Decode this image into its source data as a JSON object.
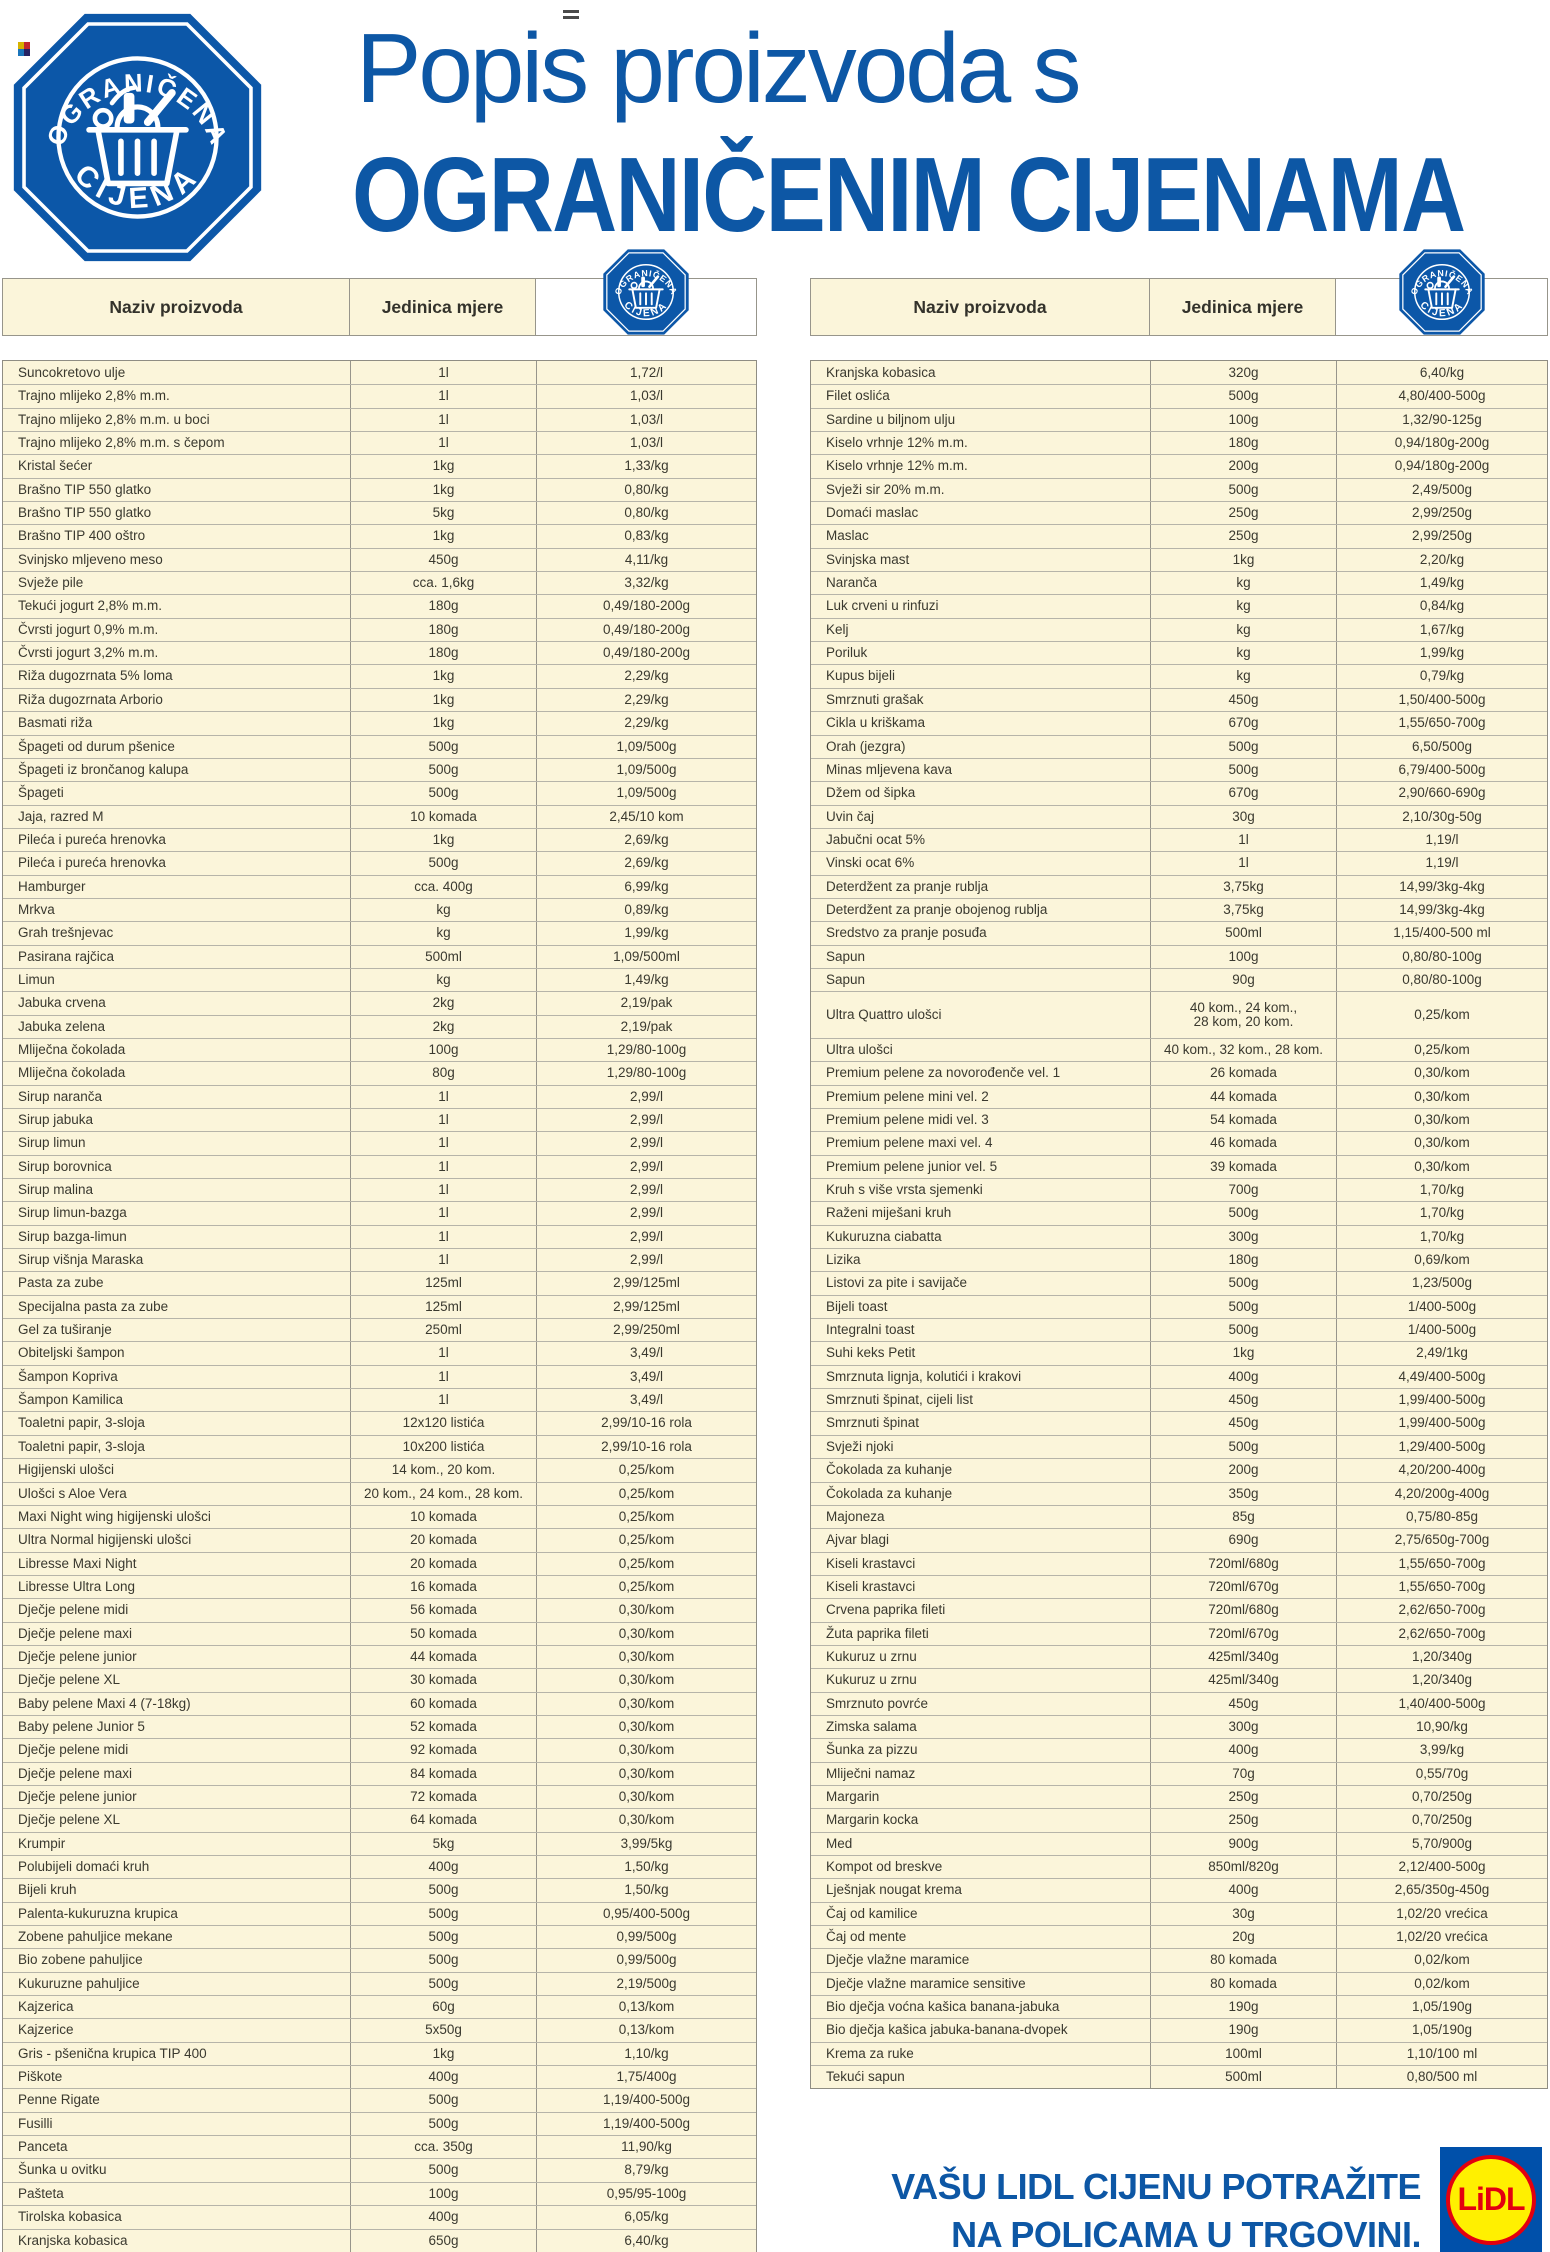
{
  "badge": {
    "top_text": "OGRANIČENA",
    "bottom_text": "CIJENA"
  },
  "title": {
    "line1": "Popis proizvoda s",
    "line2": "OGRANIČENIM CIJENAMA"
  },
  "table_header": {
    "product": "Naziv proizvoda",
    "unit": "Jedinica mjere"
  },
  "colors": {
    "brand_blue": "#0d57a5",
    "badge_blue": "#0c57a8",
    "row_cream": "#fbf5da",
    "border_gray": "#97958b",
    "text_dark": "#3a392f",
    "lidl_square_blue": "#0050aa",
    "lidl_yellow": "#fff000",
    "lidl_red": "#e3000f"
  },
  "tables": {
    "left": {
      "rows": [
        [
          "Suncokretovo ulje",
          "1l",
          "1,72/l"
        ],
        [
          "Trajno mlijeko 2,8% m.m.",
          "1l",
          "1,03/l"
        ],
        [
          "Trajno mlijeko 2,8% m.m. u boci",
          "1l",
          "1,03/l"
        ],
        [
          "Trajno mlijeko 2,8% m.m. s čepom",
          "1l",
          "1,03/l"
        ],
        [
          "Kristal šećer",
          "1kg",
          "1,33/kg"
        ],
        [
          "Brašno TIP 550 glatko",
          "1kg",
          "0,80/kg"
        ],
        [
          "Brašno TIP 550 glatko",
          "5kg",
          "0,80/kg"
        ],
        [
          "Brašno TIP 400 oštro",
          "1kg",
          "0,83/kg"
        ],
        [
          "Svinjsko mljeveno meso",
          "450g",
          "4,11/kg"
        ],
        [
          "Svježe pile",
          "cca. 1,6kg",
          "3,32/kg"
        ],
        [
          "Tekući jogurt 2,8% m.m.",
          "180g",
          "0,49/180-200g"
        ],
        [
          "Čvrsti jogurt 0,9% m.m.",
          "180g",
          "0,49/180-200g"
        ],
        [
          "Čvrsti jogurt 3,2% m.m.",
          "180g",
          "0,49/180-200g"
        ],
        [
          "Riža dugozrnata 5% loma",
          "1kg",
          "2,29/kg"
        ],
        [
          "Riža dugozrnata Arborio",
          "1kg",
          "2,29/kg"
        ],
        [
          "Basmati riža",
          "1kg",
          "2,29/kg"
        ],
        [
          "Špageti od durum pšenice",
          "500g",
          "1,09/500g"
        ],
        [
          "Špageti iz brončanog kalupa",
          "500g",
          "1,09/500g"
        ],
        [
          "Špageti",
          "500g",
          "1,09/500g"
        ],
        [
          "Jaja, razred M",
          "10 komada",
          "2,45/10 kom"
        ],
        [
          "Pileća i pureća hrenovka",
          "1kg",
          "2,69/kg"
        ],
        [
          "Pileća i pureća hrenovka",
          "500g",
          "2,69/kg"
        ],
        [
          "Hamburger",
          "cca. 400g",
          "6,99/kg"
        ],
        [
          "Mrkva",
          "kg",
          "0,89/kg"
        ],
        [
          "Grah trešnjevac",
          "kg",
          "1,99/kg"
        ],
        [
          "Pasirana rajčica",
          "500ml",
          "1,09/500ml"
        ],
        [
          "Limun",
          "kg",
          "1,49/kg"
        ],
        [
          "Jabuka crvena",
          "2kg",
          "2,19/pak"
        ],
        [
          "Jabuka zelena",
          "2kg",
          "2,19/pak"
        ],
        [
          "Mliječna čokolada",
          "100g",
          "1,29/80-100g"
        ],
        [
          "Mliječna čokolada",
          "80g",
          "1,29/80-100g"
        ],
        [
          "Sirup naranča",
          "1l",
          "2,99/l"
        ],
        [
          "Sirup jabuka",
          "1l",
          "2,99/l"
        ],
        [
          "Sirup limun",
          "1l",
          "2,99/l"
        ],
        [
          "Sirup borovnica",
          "1l",
          "2,99/l"
        ],
        [
          "Sirup malina",
          "1l",
          "2,99/l"
        ],
        [
          "Sirup limun-bazga",
          "1l",
          "2,99/l"
        ],
        [
          "Sirup bazga-limun",
          "1l",
          "2,99/l"
        ],
        [
          "Sirup višnja Maraska",
          "1l",
          "2,99/l"
        ],
        [
          "Pasta za zube",
          "125ml",
          "2,99/125ml"
        ],
        [
          "Specijalna pasta za zube",
          "125ml",
          "2,99/125ml"
        ],
        [
          "Gel za tuširanje",
          "250ml",
          "2,99/250ml"
        ],
        [
          "Obiteljski šampon",
          "1l",
          "3,49/l"
        ],
        [
          "Šampon Kopriva",
          "1l",
          "3,49/l"
        ],
        [
          "Šampon Kamilica",
          "1l",
          "3,49/l"
        ],
        [
          "Toaletni papir, 3-sloja",
          "12x120 listića",
          "2,99/10-16 rola"
        ],
        [
          "Toaletni papir, 3-sloja",
          "10x200 listića",
          "2,99/10-16 rola"
        ],
        [
          "Higijenski ulošci",
          "14 kom., 20 kom.",
          "0,25/kom"
        ],
        [
          "Ulošci s Aloe Vera",
          "20 kom., 24 kom., 28 kom.",
          "0,25/kom"
        ],
        [
          "Maxi Night wing higijenski ulošci",
          "10 komada",
          "0,25/kom"
        ],
        [
          "Ultra Normal higijenski ulošci",
          "20 komada",
          "0,25/kom"
        ],
        [
          "Libresse Maxi Night",
          "20 komada",
          "0,25/kom"
        ],
        [
          "Libresse Ultra Long",
          "16 komada",
          "0,25/kom"
        ],
        [
          "Dječje pelene midi",
          "56 komada",
          "0,30/kom"
        ],
        [
          "Dječje pelene maxi",
          "50 komada",
          "0,30/kom"
        ],
        [
          "Dječje pelene junior",
          "44 komada",
          "0,30/kom"
        ],
        [
          "Dječje pelene XL",
          "30 komada",
          "0,30/kom"
        ],
        [
          "Baby pelene Maxi 4 (7-18kg)",
          "60 komada",
          "0,30/kom"
        ],
        [
          "Baby pelene Junior 5",
          "52 komada",
          "0,30/kom"
        ],
        [
          "Dječje pelene midi",
          "92 komada",
          "0,30/kom"
        ],
        [
          "Dječje pelene maxi",
          "84 komada",
          "0,30/kom"
        ],
        [
          "Dječje pelene junior",
          "72 komada",
          "0,30/kom"
        ],
        [
          "Dječje pelene XL",
          "64 komada",
          "0,30/kom"
        ],
        [
          "Krumpir",
          "5kg",
          "3,99/5kg"
        ],
        [
          "Polubijeli domaći kruh",
          "400g",
          "1,50/kg"
        ],
        [
          "Bijeli kruh",
          "500g",
          "1,50/kg"
        ],
        [
          "Palenta-kukuruzna krupica",
          "500g",
          "0,95/400-500g"
        ],
        [
          "Zobene pahuljice mekane",
          "500g",
          "0,99/500g"
        ],
        [
          "Bio zobene pahuljice",
          "500g",
          "0,99/500g"
        ],
        [
          "Kukuruzne pahuljice",
          "500g",
          "2,19/500g"
        ],
        [
          "Kajzerica",
          "60g",
          "0,13/kom"
        ],
        [
          "Kajzerice",
          "5x50g",
          "0,13/kom"
        ],
        [
          "Gris - pšenična krupica TIP 400",
          "1kg",
          "1,10/kg"
        ],
        [
          "Piškote",
          "400g",
          "1,75/400g"
        ],
        [
          "Penne Rigate",
          "500g",
          "1,19/400-500g"
        ],
        [
          "Fusilli",
          "500g",
          "1,19/400-500g"
        ],
        [
          "Panceta",
          "cca. 350g",
          "11,90/kg"
        ],
        [
          "Šunka u ovitku",
          "500g",
          "8,79/kg"
        ],
        [
          "Pašteta",
          "100g",
          "0,95/95-100g"
        ],
        [
          "Tirolska kobasica",
          "400g",
          "6,05/kg"
        ],
        [
          "Kranjska kobasica",
          "650g",
          "6,40/kg"
        ]
      ]
    },
    "right": {
      "rows": [
        [
          "Kranjska kobasica",
          "320g",
          "6,40/kg"
        ],
        [
          "Filet oslića",
          "500g",
          "4,80/400-500g"
        ],
        [
          "Sardine u biljnom ulju",
          "100g",
          "1,32/90-125g"
        ],
        [
          "Kiselo vrhnje 12% m.m.",
          "180g",
          "0,94/180g-200g"
        ],
        [
          "Kiselo vrhnje 12% m.m.",
          "200g",
          "0,94/180g-200g"
        ],
        [
          "Svježi sir 20% m.m.",
          "500g",
          "2,49/500g"
        ],
        [
          "Domaći maslac",
          "250g",
          "2,99/250g"
        ],
        [
          "Maslac",
          "250g",
          "2,99/250g"
        ],
        [
          "Svinjska mast",
          "1kg",
          "2,20/kg"
        ],
        [
          "Naranča",
          "kg",
          "1,49/kg"
        ],
        [
          "Luk crveni u rinfuzi",
          "kg",
          "0,84/kg"
        ],
        [
          "Kelj",
          "kg",
          "1,67/kg"
        ],
        [
          "Poriluk",
          "kg",
          "1,99/kg"
        ],
        [
          "Kupus bijeli",
          "kg",
          "0,79/kg"
        ],
        [
          "Smrznuti grašak",
          "450g",
          "1,50/400-500g"
        ],
        [
          "Cikla u kriškama",
          "670g",
          "1,55/650-700g"
        ],
        [
          "Orah (jezgra)",
          "500g",
          "6,50/500g"
        ],
        [
          "Minas mljevena kava",
          "500g",
          "6,79/400-500g"
        ],
        [
          "Džem od šipka",
          "670g",
          "2,90/660-690g"
        ],
        [
          "Uvin čaj",
          "30g",
          "2,10/30g-50g"
        ],
        [
          "Jabučni ocat 5%",
          "1l",
          "1,19/l"
        ],
        [
          "Vinski ocat 6%",
          "1l",
          "1,19/l"
        ],
        [
          "Deterdžent za pranje rublja",
          "3,75kg",
          "14,99/3kg-4kg"
        ],
        [
          "Deterdžent za pranje obojenog rublja",
          "3,75kg",
          "14,99/3kg-4kg"
        ],
        [
          "Sredstvo za pranje posuđa",
          "500ml",
          "1,15/400-500 ml"
        ],
        [
          "Sapun",
          "100g",
          "0,80/80-100g"
        ],
        [
          "Sapun",
          "90g",
          "0,80/80-100g"
        ],
        [
          "Ultra Quattro ulošci",
          "40 kom., 24 kom.,\n28 kom, 20 kom.",
          "0,25/kom"
        ],
        [
          "Ultra ulošci",
          "40 kom., 32 kom., 28 kom.",
          "0,25/kom"
        ],
        [
          "Premium pelene za novorođenče vel. 1",
          "26 komada",
          "0,30/kom"
        ],
        [
          "Premium pelene mini vel. 2",
          "44 komada",
          "0,30/kom"
        ],
        [
          "Premium pelene midi vel. 3",
          "54 komada",
          "0,30/kom"
        ],
        [
          "Premium pelene maxi vel. 4",
          "46 komada",
          "0,30/kom"
        ],
        [
          "Premium pelene junior vel. 5",
          "39 komada",
          "0,30/kom"
        ],
        [
          "Kruh s više vrsta sjemenki",
          "700g",
          "1,70/kg"
        ],
        [
          "Raženi miješani kruh",
          "500g",
          "1,70/kg"
        ],
        [
          "Kukuruzna ciabatta",
          "300g",
          "1,70/kg"
        ],
        [
          "Lizika",
          "180g",
          "0,69/kom"
        ],
        [
          "Listovi za pite i savijače",
          "500g",
          "1,23/500g"
        ],
        [
          "Bijeli toast",
          "500g",
          "1/400-500g"
        ],
        [
          "Integralni toast",
          "500g",
          "1/400-500g"
        ],
        [
          "Suhi keks Petit",
          "1kg",
          "2,49/1kg"
        ],
        [
          "Smrznuta lignja, kolutići i krakovi",
          "400g",
          "4,49/400-500g"
        ],
        [
          "Smrznuti špinat, cijeli list",
          "450g",
          "1,99/400-500g"
        ],
        [
          "Smrznuti špinat",
          "450g",
          "1,99/400-500g"
        ],
        [
          "Svježi njoki",
          "500g",
          "1,29/400-500g"
        ],
        [
          "Čokolada za kuhanje",
          "200g",
          "4,20/200-400g"
        ],
        [
          "Čokolada za kuhanje",
          "350g",
          "4,20/200g-400g"
        ],
        [
          "Majoneza",
          "85g",
          "0,75/80-85g"
        ],
        [
          "Ajvar blagi",
          "690g",
          "2,75/650g-700g"
        ],
        [
          "Kiseli krastavci",
          "720ml/680g",
          "1,55/650-700g"
        ],
        [
          "Kiseli krastavci",
          "720ml/670g",
          "1,55/650-700g"
        ],
        [
          "Crvena paprika fileti",
          "720ml/680g",
          "2,62/650-700g"
        ],
        [
          "Žuta paprika fileti",
          "720ml/670g",
          "2,62/650-700g"
        ],
        [
          "Kukuruz u zrnu",
          "425ml/340g",
          "1,20/340g"
        ],
        [
          "Kukuruz u zrnu",
          "425ml/340g",
          "1,20/340g"
        ],
        [
          "Smrznuto povrće",
          "450g",
          "1,40/400-500g"
        ],
        [
          "Zimska salama",
          "300g",
          "10,90/kg"
        ],
        [
          "Šunka za pizzu",
          "400g",
          "3,99/kg"
        ],
        [
          "Mliječni namaz",
          "70g",
          "0,55/70g"
        ],
        [
          "Margarin",
          "250g",
          "0,70/250g"
        ],
        [
          "Margarin kocka",
          "250g",
          "0,70/250g"
        ],
        [
          "Med",
          "900g",
          "5,70/900g"
        ],
        [
          "Kompot od breskve",
          "850ml/820g",
          "2,12/400-500g"
        ],
        [
          "Lješnjak nougat krema",
          "400g",
          "2,65/350g-450g"
        ],
        [
          "Čaj od kamilice",
          "30g",
          "1,02/20 vrećica"
        ],
        [
          "Čaj od mente",
          "20g",
          "1,02/20 vrećica"
        ],
        [
          "Dječje vlažne maramice",
          "80 komada",
          "0,02/kom"
        ],
        [
          "Dječje vlažne maramice sensitive",
          "80 komada",
          "0,02/kom"
        ],
        [
          "Bio dječja voćna kašica banana-jabuka",
          "190g",
          "1,05/190g"
        ],
        [
          "Bio dječja kašica jabuka-banana-dvopek",
          "190g",
          "1,05/190g"
        ],
        [
          "Krema za ruke",
          "100ml",
          "1,10/100 ml"
        ],
        [
          "Tekući sapun",
          "500ml",
          "0,80/500 ml"
        ]
      ]
    }
  },
  "footer": {
    "line1": "VAŠU LIDL CIJENU POTRAŽITE",
    "line2": "NA POLICAMA U TRGOVINI.",
    "logo_text": "LiDL"
  }
}
